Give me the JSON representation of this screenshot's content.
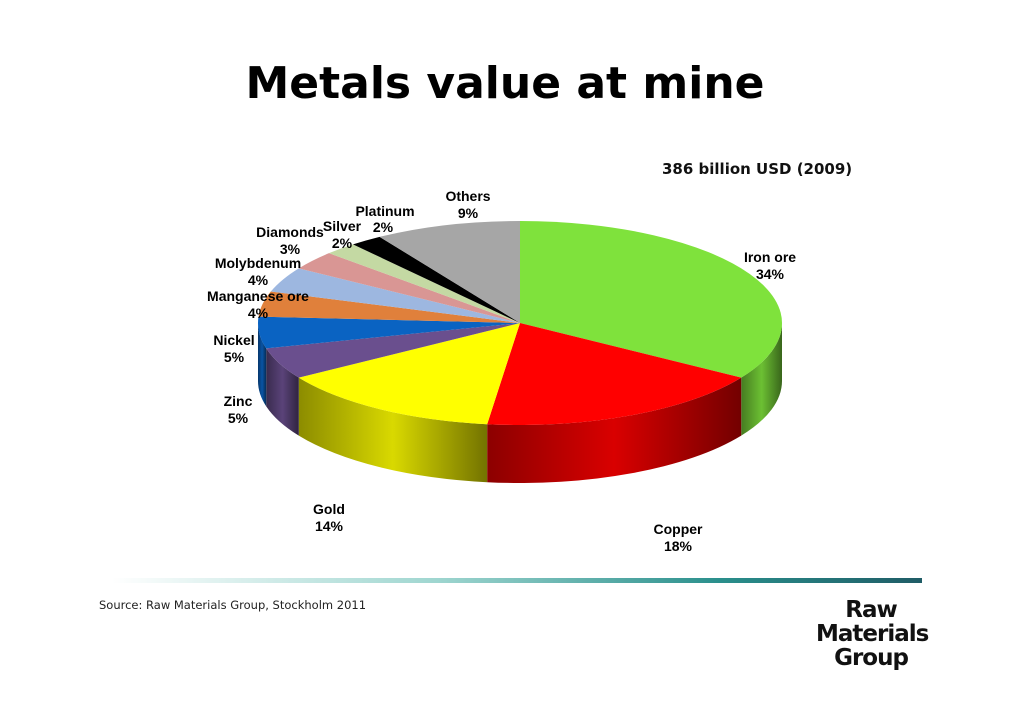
{
  "slide": {
    "title": "Metals value at mine",
    "subtitle": "386  billion USD (2009)",
    "source": "Source: Raw Materials Group, Stockholm 2011",
    "logo_lines": [
      "Raw",
      "Materials",
      "Group"
    ]
  },
  "chart_data": {
    "type": "pie",
    "style": "3d-exploded-none",
    "title": "Metals value at mine",
    "total_label": "386  billion USD (2009)",
    "slices": [
      {
        "name": "Iron ore",
        "pct_label": "34%",
        "value": 34,
        "color": "#7fe23c"
      },
      {
        "name": "Copper",
        "pct_label": "18%",
        "value": 18,
        "color": "#ff0000"
      },
      {
        "name": "Gold",
        "pct_label": "14%",
        "value": 14,
        "color": "#ffff00"
      },
      {
        "name": "Zinc",
        "pct_label": "5%",
        "value": 5,
        "color": "#6a4f8e"
      },
      {
        "name": "Nickel",
        "pct_label": "5%",
        "value": 5,
        "color": "#0a63c2"
      },
      {
        "name": "Manganese ore",
        "pct_label": "4%",
        "value": 4,
        "color": "#e0803b"
      },
      {
        "name": "Molybdenum",
        "pct_label": "4%",
        "value": 4,
        "color": "#9db7e0"
      },
      {
        "name": "Diamonds",
        "pct_label": "3%",
        "value": 3,
        "color": "#d99694"
      },
      {
        "name": "Silver",
        "pct_label": "2%",
        "value": 2,
        "color": "#c4d9a3"
      },
      {
        "name": "Platinum",
        "pct_label": "2%",
        "value": 2,
        "color": "#000000"
      },
      {
        "name": "Others",
        "pct_label": "9%",
        "value": 9,
        "color": "#a6a6a6"
      }
    ]
  }
}
